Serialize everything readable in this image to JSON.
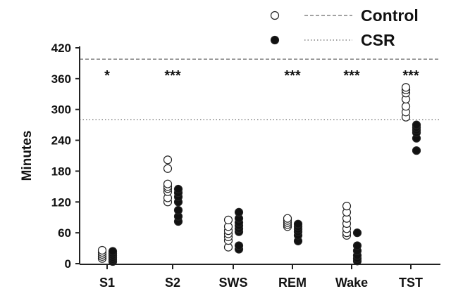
{
  "chart_data": {
    "type": "scatter",
    "ylabel": "Minutes",
    "ylim": [
      0,
      420
    ],
    "yticks": [
      0,
      60,
      120,
      180,
      240,
      300,
      360,
      420
    ],
    "categories": [
      "S1",
      "S2",
      "SWS",
      "REM",
      "Wake",
      "TST"
    ],
    "significance": [
      "*",
      "***",
      "",
      "***",
      "***",
      "***"
    ],
    "legend": {
      "position": "top-right",
      "entries": [
        "Control",
        "CSR"
      ]
    },
    "reference_lines": [
      {
        "name": "Control",
        "value": 398,
        "style": "dashed"
      },
      {
        "name": "CSR",
        "value": 280,
        "style": "dotted"
      }
    ],
    "series": [
      {
        "name": "Control",
        "marker": "open-circle",
        "values": [
          [
            10,
            14,
            18,
            22,
            26
          ],
          [
            120,
            128,
            140,
            146,
            150,
            155,
            185,
            202
          ],
          [
            32,
            45,
            52,
            58,
            64,
            72,
            85
          ],
          [
            72,
            76,
            80,
            84,
            88
          ],
          [
            55,
            60,
            68,
            78,
            88,
            100,
            112
          ],
          [
            285,
            295,
            306,
            320,
            332,
            338,
            343
          ]
        ]
      },
      {
        "name": "CSR",
        "marker": "filled-circle",
        "values": [
          [
            4,
            8,
            12,
            16,
            20,
            24
          ],
          [
            82,
            92,
            104,
            120,
            130,
            138,
            145
          ],
          [
            28,
            35,
            62,
            68,
            74,
            80,
            88,
            100
          ],
          [
            44,
            55,
            62,
            67,
            72,
            77
          ],
          [
            5,
            10,
            16,
            25,
            35,
            60
          ],
          [
            220,
            244,
            255,
            260,
            265,
            270
          ]
        ]
      }
    ]
  }
}
